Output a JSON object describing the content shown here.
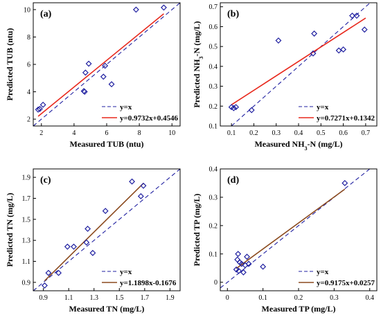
{
  "chart_data": [
    {
      "type": "scatter",
      "panel_label": "(a)",
      "xlabel": "Measured TUB (ntu)",
      "ylabel": "Predicted TUB (ntu)",
      "xlim": [
        1.5,
        10.5
      ],
      "ylim": [
        1.5,
        10.5
      ],
      "xticks": [
        2,
        4,
        6,
        8,
        10
      ],
      "yticks": [
        2,
        4,
        6,
        8,
        10
      ],
      "tick_labels": [
        "2",
        "4",
        "6",
        "8",
        "10"
      ],
      "points": [
        {
          "x": 1.8,
          "y": 2.7
        },
        {
          "x": 1.9,
          "y": 2.75
        },
        {
          "x": 2.1,
          "y": 3.05
        },
        {
          "x": 4.6,
          "y": 4.05
        },
        {
          "x": 4.65,
          "y": 4.0
        },
        {
          "x": 4.7,
          "y": 5.4
        },
        {
          "x": 4.9,
          "y": 6.05
        },
        {
          "x": 5.8,
          "y": 5.1
        },
        {
          "x": 5.9,
          "y": 5.9
        },
        {
          "x": 6.3,
          "y": 4.55
        },
        {
          "x": 7.8,
          "y": 10.0
        },
        {
          "x": 9.5,
          "y": 10.15
        }
      ],
      "fit": {
        "slope": 0.9732,
        "intercept": 0.4546,
        "x_range": [
          1.8,
          9.5
        ]
      },
      "legend": {
        "identity_label": "y=x",
        "fit_label": "y=0.9732x+0.4546",
        "position": "bottom-right"
      },
      "fit_color": "#e8291d"
    },
    {
      "type": "scatter",
      "panel_label": "(b)",
      "xlabel": "Measured NH3-N (mg/L)",
      "ylabel": "Predicted NH3-N (mg/L)",
      "xlim": [
        0.05,
        0.75
      ],
      "ylim": [
        0.1,
        0.72
      ],
      "xticks": [
        0.1,
        0.2,
        0.3,
        0.4,
        0.5,
        0.6,
        0.7
      ],
      "yticks": [
        0.1,
        0.2,
        0.3,
        0.4,
        0.5,
        0.6,
        0.7
      ],
      "tick_labels": [
        "0.1",
        "0.2",
        "0.3",
        "0.4",
        "0.5",
        "0.6",
        "0.7"
      ],
      "points": [
        {
          "x": 0.1,
          "y": 0.195
        },
        {
          "x": 0.11,
          "y": 0.19
        },
        {
          "x": 0.12,
          "y": 0.195
        },
        {
          "x": 0.19,
          "y": 0.18
        },
        {
          "x": 0.31,
          "y": 0.53
        },
        {
          "x": 0.465,
          "y": 0.465
        },
        {
          "x": 0.47,
          "y": 0.565
        },
        {
          "x": 0.58,
          "y": 0.48
        },
        {
          "x": 0.6,
          "y": 0.485
        },
        {
          "x": 0.64,
          "y": 0.655
        },
        {
          "x": 0.66,
          "y": 0.655
        },
        {
          "x": 0.695,
          "y": 0.585
        }
      ],
      "fit": {
        "slope": 0.7271,
        "intercept": 0.1342,
        "x_range": [
          0.1,
          0.7
        ]
      },
      "legend": {
        "identity_label": "y=x",
        "fit_label": "y=0.7271x+0.1342",
        "position": "bottom-right"
      },
      "fit_color": "#e8291d"
    },
    {
      "type": "scatter",
      "panel_label": "(c)",
      "xlabel": "Measured TN (mg/L)",
      "ylabel": "Predicted TN (mg/L)",
      "xlim": [
        0.82,
        1.98
      ],
      "ylim": [
        0.82,
        1.98
      ],
      "xticks": [
        0.9,
        1.1,
        1.3,
        1.5,
        1.7,
        1.9
      ],
      "yticks": [
        0.9,
        1.1,
        1.3,
        1.5,
        1.7,
        1.9
      ],
      "tick_labels": [
        "0.9",
        "1.1",
        "1.3",
        "1.5",
        "1.7",
        "1.9"
      ],
      "points": [
        {
          "x": 0.91,
          "y": 0.87
        },
        {
          "x": 0.94,
          "y": 0.99
        },
        {
          "x": 1.02,
          "y": 0.99
        },
        {
          "x": 1.09,
          "y": 1.24
        },
        {
          "x": 1.14,
          "y": 1.24
        },
        {
          "x": 1.24,
          "y": 1.28
        },
        {
          "x": 1.25,
          "y": 1.41
        },
        {
          "x": 1.29,
          "y": 1.18
        },
        {
          "x": 1.39,
          "y": 1.58
        },
        {
          "x": 1.6,
          "y": 1.86
        },
        {
          "x": 1.67,
          "y": 1.72
        },
        {
          "x": 1.69,
          "y": 1.82
        }
      ],
      "fit": {
        "slope": 1.1898,
        "intercept": -0.1676,
        "x_range": [
          0.91,
          1.69
        ]
      },
      "legend": {
        "identity_label": "y=x",
        "fit_label": "y=1.1898x-0.1676",
        "position": "bottom-right"
      },
      "fit_color": "#8b4a1e"
    },
    {
      "type": "scatter",
      "panel_label": "(d)",
      "xlabel": "Measured TP (mg/L)",
      "ylabel": "Predicted TP (mg/L)",
      "xlim": [
        -0.02,
        0.42
      ],
      "ylim": [
        -0.03,
        0.4
      ],
      "xticks": [
        0,
        0.1,
        0.2,
        0.3,
        0.4
      ],
      "yticks": [
        0,
        0.1,
        0.2,
        0.3,
        0.4
      ],
      "tick_labels": [
        "0",
        "0.1",
        "0.2",
        "0.3",
        "0.4"
      ],
      "points": [
        {
          "x": 0.025,
          "y": 0.045
        },
        {
          "x": 0.028,
          "y": 0.08
        },
        {
          "x": 0.03,
          "y": 0.1
        },
        {
          "x": 0.032,
          "y": 0.04
        },
        {
          "x": 0.035,
          "y": 0.07
        },
        {
          "x": 0.04,
          "y": 0.065
        },
        {
          "x": 0.045,
          "y": 0.035
        },
        {
          "x": 0.05,
          "y": 0.06
        },
        {
          "x": 0.055,
          "y": 0.09
        },
        {
          "x": 0.06,
          "y": 0.065
        },
        {
          "x": 0.1,
          "y": 0.055
        },
        {
          "x": 0.33,
          "y": 0.35
        }
      ],
      "fit": {
        "slope": 0.9175,
        "intercept": 0.0257,
        "x_range": [
          0.025,
          0.33
        ]
      },
      "legend": {
        "identity_label": "y=x",
        "fit_label": "y=0.9175x+0.0257",
        "position": "bottom-right"
      },
      "fit_color": "#8b4a1e"
    }
  ],
  "style": {
    "marker_color": "#1f1fa0",
    "identity_line_color": "#1f1fa0"
  }
}
